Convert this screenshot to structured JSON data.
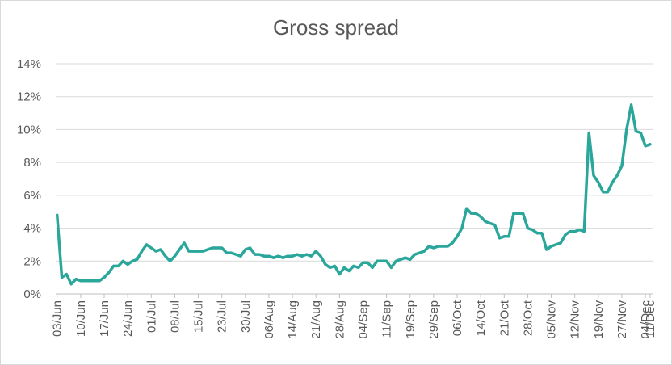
{
  "chart_data": {
    "type": "line",
    "title": "Gross spread",
    "xlabel": "",
    "ylabel": "",
    "ylim": [
      0,
      14
    ],
    "y_ticks": [
      "0%",
      "2%",
      "4%",
      "6%",
      "8%",
      "10%",
      "12%",
      "14%"
    ],
    "x_ticks": [
      "03/Jun",
      "10/Jun",
      "17/Jun",
      "24/Jun",
      "01/Jul",
      "08/Jul",
      "15/Jul",
      "23/Jul",
      "30/Jul",
      "06/Aug",
      "14/Aug",
      "21/Aug",
      "28/Aug",
      "04/Sep",
      "11/Sep",
      "19/Sep",
      "29/Sep",
      "06/Oct",
      "14/Oct",
      "21/Oct",
      "28/Oct",
      "05/Nov",
      "12/Nov",
      "19/Nov",
      "27/Nov",
      "04/Dec",
      "11/Dec"
    ],
    "grid": true,
    "legend": "none",
    "series": [
      {
        "color": "#2aa69b",
        "points": [
          [
            "03/Jun",
            4.8
          ],
          [
            "04/Jun",
            1.0
          ],
          [
            "05/Jun",
            1.2
          ],
          [
            "06/Jun",
            0.6
          ],
          [
            "07/Jun",
            0.9
          ],
          [
            "10/Jun",
            0.8
          ],
          [
            "11/Jun",
            0.8
          ],
          [
            "12/Jun",
            0.8
          ],
          [
            "13/Jun",
            0.8
          ],
          [
            "14/Jun",
            0.8
          ],
          [
            "17/Jun",
            1.0
          ],
          [
            "18/Jun",
            1.3
          ],
          [
            "19/Jun",
            1.7
          ],
          [
            "20/Jun",
            1.7
          ],
          [
            "21/Jun",
            2.0
          ],
          [
            "24/Jun",
            1.8
          ],
          [
            "25/Jun",
            2.0
          ],
          [
            "26/Jun",
            2.1
          ],
          [
            "27/Jun",
            2.6
          ],
          [
            "28/Jun",
            3.0
          ],
          [
            "01/Jul",
            2.8
          ],
          [
            "02/Jul",
            2.6
          ],
          [
            "03/Jul",
            2.7
          ],
          [
            "04/Jul",
            2.3
          ],
          [
            "05/Jul",
            2.0
          ],
          [
            "08/Jul",
            2.3
          ],
          [
            "09/Jul",
            2.7
          ],
          [
            "10/Jul",
            3.1
          ],
          [
            "11/Jul",
            2.6
          ],
          [
            "12/Jul",
            2.6
          ],
          [
            "15/Jul",
            2.6
          ],
          [
            "16/Jul",
            2.6
          ],
          [
            "17/Jul",
            2.7
          ],
          [
            "18/Jul",
            2.8
          ],
          [
            "19/Jul",
            2.8
          ],
          [
            "23/Jul",
            2.8
          ],
          [
            "24/Jul",
            2.5
          ],
          [
            "25/Jul",
            2.5
          ],
          [
            "26/Jul",
            2.4
          ],
          [
            "27/Jul",
            2.3
          ],
          [
            "30/Jul",
            2.7
          ],
          [
            "31/Jul",
            2.8
          ],
          [
            "01/Aug",
            2.4
          ],
          [
            "02/Aug",
            2.4
          ],
          [
            "03/Aug",
            2.3
          ],
          [
            "06/Aug",
            2.3
          ],
          [
            "07/Aug",
            2.2
          ],
          [
            "08/Aug",
            2.3
          ],
          [
            "09/Aug",
            2.2
          ],
          [
            "10/Aug",
            2.3
          ],
          [
            "14/Aug",
            2.3
          ],
          [
            "15/Aug",
            2.4
          ],
          [
            "16/Aug",
            2.3
          ],
          [
            "17/Aug",
            2.4
          ],
          [
            "18/Aug",
            2.3
          ],
          [
            "21/Aug",
            2.6
          ],
          [
            "22/Aug",
            2.3
          ],
          [
            "23/Aug",
            1.8
          ],
          [
            "24/Aug",
            1.6
          ],
          [
            "25/Aug",
            1.7
          ],
          [
            "28/Aug",
            1.2
          ],
          [
            "29/Aug",
            1.6
          ],
          [
            "30/Aug",
            1.4
          ],
          [
            "31/Aug",
            1.7
          ],
          [
            "01/Sep",
            1.6
          ],
          [
            "04/Sep",
            1.9
          ],
          [
            "05/Sep",
            1.9
          ],
          [
            "06/Sep",
            1.6
          ],
          [
            "07/Sep",
            2.0
          ],
          [
            "08/Sep",
            2.0
          ],
          [
            "11/Sep",
            2.0
          ],
          [
            "12/Sep",
            1.6
          ],
          [
            "13/Sep",
            2.0
          ],
          [
            "14/Sep",
            2.1
          ],
          [
            "15/Sep",
            2.2
          ],
          [
            "19/Sep",
            2.1
          ],
          [
            "20/Sep",
            2.4
          ],
          [
            "21/Sep",
            2.5
          ],
          [
            "22/Sep",
            2.6
          ],
          [
            "25/Sep",
            2.9
          ],
          [
            "29/Sep",
            2.8
          ],
          [
            "30/Sep",
            2.9
          ],
          [
            "01/Oct",
            2.9
          ],
          [
            "02/Oct",
            2.9
          ],
          [
            "03/Oct",
            3.1
          ],
          [
            "06/Oct",
            3.5
          ],
          [
            "07/Oct",
            4.0
          ],
          [
            "08/Oct",
            5.2
          ],
          [
            "09/Oct",
            4.9
          ],
          [
            "10/Oct",
            4.9
          ],
          [
            "14/Oct",
            4.7
          ],
          [
            "15/Oct",
            4.4
          ],
          [
            "16/Oct",
            4.3
          ],
          [
            "17/Oct",
            4.2
          ],
          [
            "18/Oct",
            3.4
          ],
          [
            "21/Oct",
            3.5
          ],
          [
            "22/Oct",
            3.5
          ],
          [
            "23/Oct",
            4.9
          ],
          [
            "24/Oct",
            4.9
          ],
          [
            "25/Oct",
            4.9
          ],
          [
            "28/Oct",
            4.0
          ],
          [
            "29/Oct",
            3.9
          ],
          [
            "30/Oct",
            3.7
          ],
          [
            "31/Oct",
            3.7
          ],
          [
            "01/Nov",
            2.7
          ],
          [
            "05/Nov",
            2.9
          ],
          [
            "06/Nov",
            3.0
          ],
          [
            "07/Nov",
            3.1
          ],
          [
            "08/Nov",
            3.6
          ],
          [
            "09/Nov",
            3.8
          ],
          [
            "12/Nov",
            3.8
          ],
          [
            "13/Nov",
            3.9
          ],
          [
            "14/Nov",
            3.8
          ],
          [
            "15/Nov",
            9.8
          ],
          [
            "16/Nov",
            7.2
          ],
          [
            "19/Nov",
            6.8
          ],
          [
            "20/Nov",
            6.2
          ],
          [
            "21/Nov",
            6.2
          ],
          [
            "22/Nov",
            6.8
          ],
          [
            "23/Nov",
            7.2
          ],
          [
            "27/Nov",
            7.8
          ],
          [
            "28/Nov",
            10.0
          ],
          [
            "29/Nov",
            11.5
          ],
          [
            "30/Nov",
            9.9
          ],
          [
            "03/Dec",
            9.8
          ],
          [
            "04/Dec",
            9.0
          ],
          [
            "05/Dec",
            9.1
          ]
        ]
      }
    ]
  }
}
